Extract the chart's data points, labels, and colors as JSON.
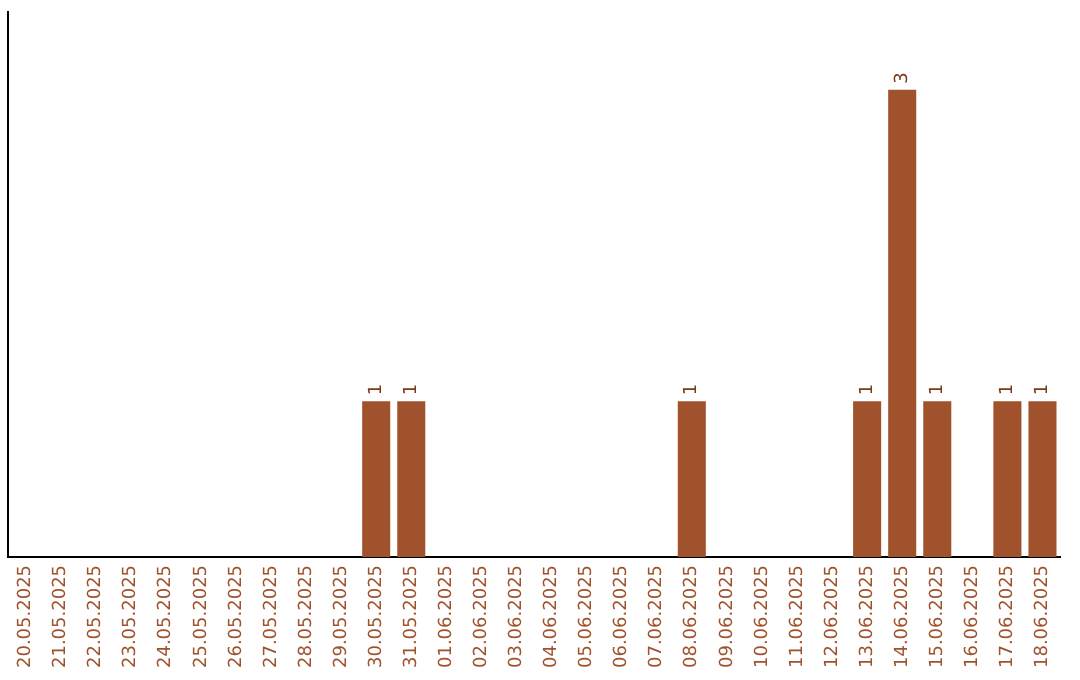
{
  "chart_data": {
    "type": "bar",
    "categories": [
      "20.05.2025",
      "21.05.2025",
      "22.05.2025",
      "23.05.2025",
      "24.05.2025",
      "25.05.2025",
      "26.05.2025",
      "27.05.2025",
      "28.05.2025",
      "29.05.2025",
      "30.05.2025",
      "31.05.2025",
      "01.06.2025",
      "02.06.2025",
      "03.06.2025",
      "04.06.2025",
      "05.06.2025",
      "06.06.2025",
      "07.06.2025",
      "08.06.2025",
      "09.06.2025",
      "10.06.2025",
      "11.06.2025",
      "12.06.2025",
      "13.06.2025",
      "14.06.2025",
      "15.06.2025",
      "16.06.2025",
      "17.06.2025",
      "18.06.2025"
    ],
    "values": [
      0,
      0,
      0,
      0,
      0,
      0,
      0,
      0,
      0,
      0,
      1,
      1,
      0,
      0,
      0,
      0,
      0,
      0,
      0,
      1,
      0,
      0,
      0,
      0,
      1,
      3,
      1,
      0,
      1,
      1
    ],
    "value_labels": [
      null,
      null,
      null,
      null,
      null,
      null,
      null,
      null,
      null,
      null,
      "1",
      "1",
      null,
      null,
      null,
      null,
      null,
      null,
      null,
      "1",
      null,
      null,
      null,
      null,
      "1",
      "3",
      "1",
      null,
      "1",
      "1"
    ],
    "color": "#a0522d",
    "grid": false,
    "legend": false,
    "tick_labels": "x"
  }
}
